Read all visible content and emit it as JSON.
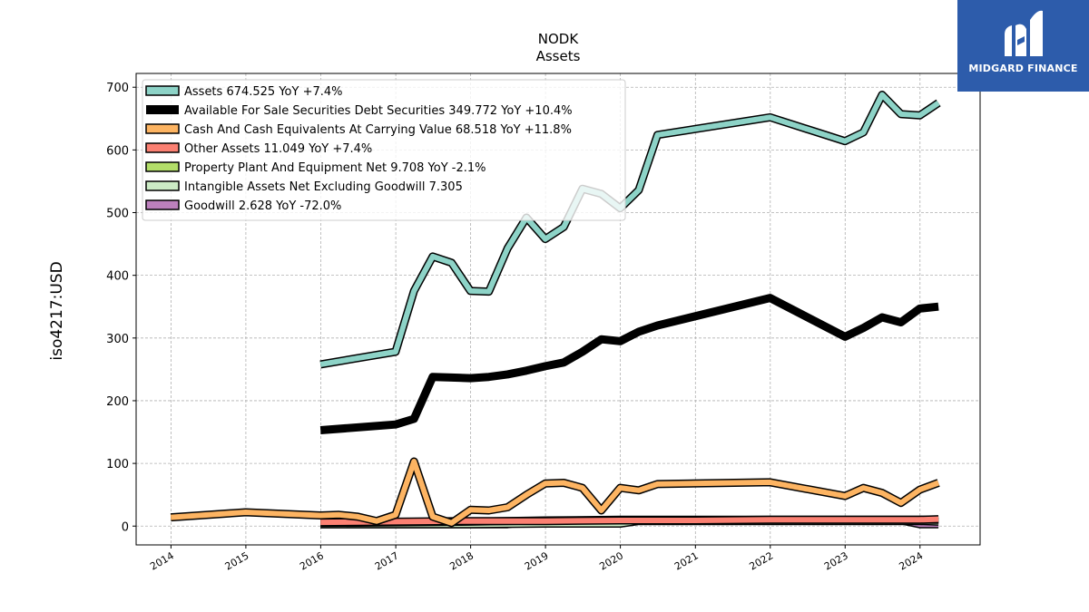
{
  "brand": {
    "name": "MIDGARD FINANCE",
    "color": "#2d5cab"
  },
  "chart_data": {
    "type": "line",
    "title": "NODK",
    "subtitle": "Assets",
    "ylabel": "iso4217:USD",
    "xlabel": "",
    "xlim": [
      "2013-07-15",
      "2024-10-20"
    ],
    "ylim": [
      -30,
      722
    ],
    "yticks": [
      0,
      100,
      200,
      300,
      400,
      500,
      600,
      700
    ],
    "xticks": [
      "2014",
      "2015",
      "2016",
      "2017",
      "2018",
      "2019",
      "2020",
      "2021",
      "2022",
      "2023",
      "2024"
    ],
    "grid": true,
    "legend_position": "top-left",
    "series": [
      {
        "name": "Assets  674.525 YoY +7.4%",
        "color": "#8dd3c7",
        "points": [
          [
            "2015-12-31",
            258
          ],
          [
            "2016-12-31",
            278
          ],
          [
            "2017-03-31",
            375
          ],
          [
            "2017-06-30",
            430
          ],
          [
            "2017-09-30",
            420
          ],
          [
            "2017-12-31",
            375
          ],
          [
            "2018-03-31",
            374
          ],
          [
            "2018-06-30",
            443
          ],
          [
            "2018-09-30",
            492
          ],
          [
            "2018-12-31",
            458
          ],
          [
            "2019-03-31",
            477
          ],
          [
            "2019-06-30",
            538
          ],
          [
            "2019-09-30",
            530
          ],
          [
            "2019-12-31",
            507
          ],
          [
            "2020-03-31",
            536
          ],
          [
            "2020-06-30",
            624
          ],
          [
            "2021-12-31",
            652
          ],
          [
            "2022-12-31",
            614
          ],
          [
            "2023-03-31",
            628
          ],
          [
            "2023-06-30",
            688
          ],
          [
            "2023-09-30",
            657
          ],
          [
            "2023-12-31",
            655
          ],
          [
            "2024-03-31",
            675
          ]
        ]
      },
      {
        "name": "Available For Sale Securities Debt Securities  349.772 YoY +10.4%",
        "color": "#000000",
        "points": [
          [
            "2015-12-31",
            153
          ],
          [
            "2016-12-31",
            162
          ],
          [
            "2017-03-31",
            171
          ],
          [
            "2017-06-30",
            238
          ],
          [
            "2017-09-30",
            237
          ],
          [
            "2017-12-31",
            236
          ],
          [
            "2018-03-31",
            238
          ],
          [
            "2018-06-30",
            242
          ],
          [
            "2018-09-30",
            248
          ],
          [
            "2018-12-31",
            255
          ],
          [
            "2019-03-31",
            261
          ],
          [
            "2019-06-30",
            278
          ],
          [
            "2019-09-30",
            298
          ],
          [
            "2019-12-31",
            295
          ],
          [
            "2020-03-31",
            310
          ],
          [
            "2020-06-30",
            320
          ],
          [
            "2021-12-31",
            364
          ],
          [
            "2022-12-31",
            302
          ],
          [
            "2023-03-31",
            316
          ],
          [
            "2023-06-30",
            333
          ],
          [
            "2023-09-30",
            325
          ],
          [
            "2023-12-31",
            347
          ],
          [
            "2024-03-31",
            350
          ]
        ]
      },
      {
        "name": "Cash And Cash Equivalents At Carrying Value  68.518 YoY +11.8%",
        "color": "#fdb462",
        "points": [
          [
            "2013-12-31",
            14
          ],
          [
            "2014-12-31",
            22
          ],
          [
            "2015-12-31",
            17
          ],
          [
            "2016-03-31",
            18
          ],
          [
            "2016-06-30",
            15
          ],
          [
            "2016-09-30",
            8
          ],
          [
            "2016-12-31",
            18
          ],
          [
            "2017-03-31",
            103
          ],
          [
            "2017-06-30",
            15
          ],
          [
            "2017-09-30",
            5
          ],
          [
            "2017-12-31",
            26
          ],
          [
            "2018-03-31",
            25
          ],
          [
            "2018-06-30",
            30
          ],
          [
            "2018-09-30",
            50
          ],
          [
            "2018-12-31",
            68
          ],
          [
            "2019-03-31",
            69
          ],
          [
            "2019-06-30",
            61
          ],
          [
            "2019-09-30",
            25
          ],
          [
            "2019-12-31",
            61
          ],
          [
            "2020-03-31",
            57
          ],
          [
            "2020-06-30",
            67
          ],
          [
            "2021-12-31",
            70
          ],
          [
            "2022-12-31",
            48
          ],
          [
            "2023-03-31",
            61
          ],
          [
            "2023-06-30",
            53
          ],
          [
            "2023-09-30",
            37
          ],
          [
            "2023-12-31",
            58
          ],
          [
            "2024-03-31",
            69
          ]
        ]
      },
      {
        "name": "Other Assets  11.049 YoY +7.4%",
        "color": "#fb8072",
        "points": [
          [
            "2015-12-31",
            6
          ],
          [
            "2016-12-31",
            7
          ],
          [
            "2017-12-31",
            8
          ],
          [
            "2018-12-31",
            8
          ],
          [
            "2019-12-31",
            9
          ],
          [
            "2020-12-31",
            9
          ],
          [
            "2021-12-31",
            10
          ],
          [
            "2022-12-31",
            10
          ],
          [
            "2023-12-31",
            10
          ],
          [
            "2024-03-31",
            11
          ]
        ]
      },
      {
        "name": "Property Plant And Equipment Net  9.708 YoY -2.1%",
        "color": "#b3de69",
        "points": [
          [
            "2015-12-31",
            5
          ],
          [
            "2016-12-31",
            6
          ],
          [
            "2017-12-31",
            7
          ],
          [
            "2018-12-31",
            9
          ],
          [
            "2019-12-31",
            10
          ],
          [
            "2020-12-31",
            10
          ],
          [
            "2021-12-31",
            10
          ],
          [
            "2022-12-31",
            10
          ],
          [
            "2023-12-31",
            10
          ],
          [
            "2024-03-31",
            10
          ]
        ]
      },
      {
        "name": "Intangible Assets Net Excluding Goodwill  7.305",
        "color": "#ccebc5",
        "points": [
          [
            "2015-12-31",
            3
          ],
          [
            "2016-12-31",
            3
          ],
          [
            "2017-12-31",
            3
          ],
          [
            "2018-12-31",
            4
          ],
          [
            "2019-12-31",
            4
          ],
          [
            "2020-03-31",
            8
          ],
          [
            "2021-12-31",
            8
          ],
          [
            "2022-12-31",
            8
          ],
          [
            "2023-12-31",
            8
          ],
          [
            "2024-03-31",
            7
          ]
        ]
      },
      {
        "name": "Goodwill  2.628 YoY -72.0%",
        "color": "#bc80bd",
        "points": [
          [
            "2015-12-31",
            3
          ],
          [
            "2016-12-31",
            3
          ],
          [
            "2017-12-31",
            3
          ],
          [
            "2018-06-30",
            3
          ],
          [
            "2018-09-30",
            7
          ],
          [
            "2019-03-31",
            4
          ],
          [
            "2019-12-31",
            4
          ],
          [
            "2020-03-31",
            9
          ],
          [
            "2021-12-31",
            9
          ],
          [
            "2022-12-31",
            9
          ],
          [
            "2023-09-30",
            9
          ],
          [
            "2023-12-31",
            3
          ],
          [
            "2024-03-31",
            3
          ]
        ]
      }
    ]
  }
}
